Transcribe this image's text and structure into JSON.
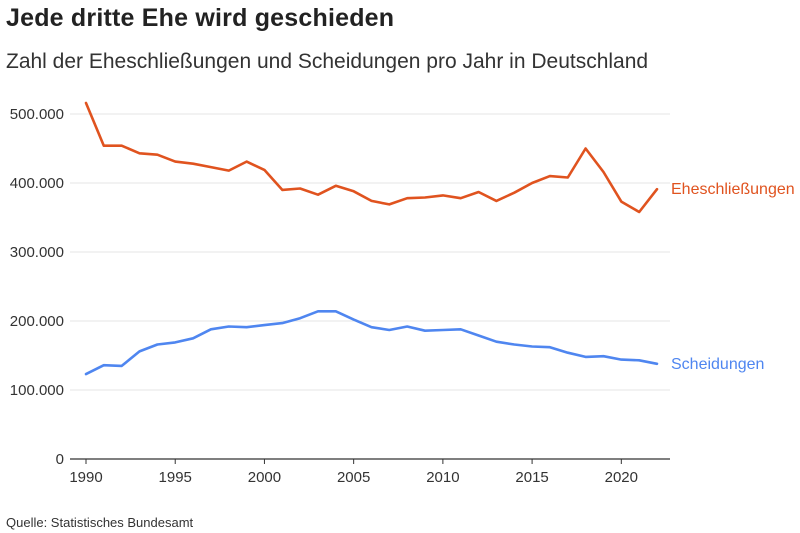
{
  "title": "Jede dritte Ehe wird geschieden",
  "subtitle": "Zahl der Eheschließungen und Scheidungen pro Jahr in Deutschland",
  "source": "Quelle: Statistisches Bundesamt",
  "colors": {
    "marriages": "#e0531f",
    "divorces": "#4f86f0",
    "grid": "#e4e4e4",
    "axis": "#333333"
  },
  "chart_data": {
    "type": "line",
    "title": "Jede dritte Ehe wird geschieden",
    "subtitle": "Zahl der Eheschließungen und Scheidungen pro Jahr in Deutschland",
    "xlabel": "",
    "ylabel": "",
    "xlim": [
      1990,
      2022
    ],
    "ylim": [
      0,
      500000
    ],
    "grid": true,
    "legend": "inline-right",
    "x_ticks": [
      1990,
      1995,
      2000,
      2005,
      2010,
      2015,
      2020
    ],
    "x_tick_labels": [
      "1990",
      "1995",
      "2000",
      "2005",
      "2010",
      "2015",
      "2020"
    ],
    "y_ticks": [
      0,
      100000,
      200000,
      300000,
      400000,
      500000
    ],
    "y_tick_labels": [
      "0",
      "100.000",
      "200.000",
      "300.000",
      "400.000",
      "500.000"
    ],
    "x": [
      1990,
      1991,
      1992,
      1993,
      1994,
      1995,
      1996,
      1997,
      1998,
      1999,
      2000,
      2001,
      2002,
      2003,
      2004,
      2005,
      2006,
      2007,
      2008,
      2009,
      2010,
      2011,
      2012,
      2013,
      2014,
      2015,
      2016,
      2017,
      2018,
      2019,
      2020,
      2021,
      2022
    ],
    "series": [
      {
        "name": "Eheschließungen",
        "color": "#e0531f",
        "values": [
          516000,
          454000,
          454000,
          443000,
          441000,
          431000,
          428000,
          423000,
          418000,
          431000,
          419000,
          390000,
          392000,
          383000,
          396000,
          388000,
          374000,
          369000,
          378000,
          379000,
          382000,
          378000,
          387000,
          374000,
          386000,
          400000,
          410000,
          408000,
          450000,
          416000,
          373000,
          358000,
          391000
        ]
      },
      {
        "name": "Scheidungen",
        "color": "#4f86f0",
        "values": [
          123000,
          136000,
          135000,
          156000,
          166000,
          169000,
          175000,
          188000,
          192000,
          191000,
          194000,
          197000,
          204000,
          214000,
          214000,
          202000,
          191000,
          187000,
          192000,
          186000,
          187000,
          188000,
          179000,
          170000,
          166000,
          163000,
          162000,
          154000,
          148000,
          149000,
          144000,
          143000,
          138000
        ]
      }
    ]
  }
}
